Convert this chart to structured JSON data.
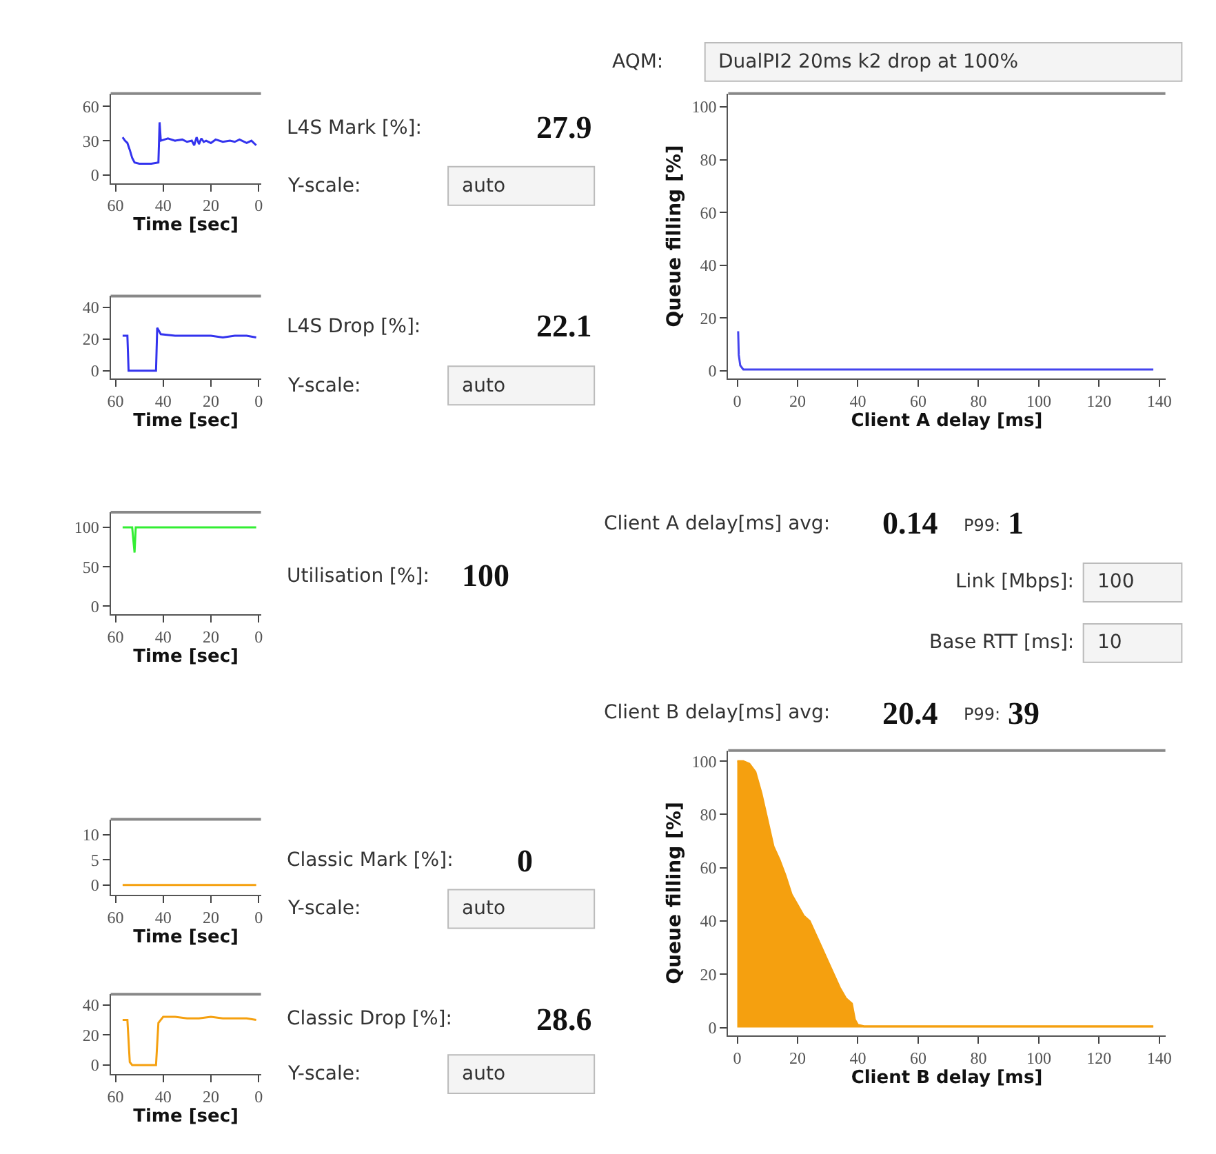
{
  "chart_data": [
    {
      "type": "line",
      "x": [
        57,
        56,
        55,
        54,
        53,
        52,
        50,
        45,
        42,
        41.5,
        41,
        38,
        35,
        32,
        30,
        28,
        27,
        26,
        25,
        24,
        23,
        22,
        20,
        18,
        15,
        12,
        10,
        8,
        5,
        3,
        1
      ],
      "series": [
        {
          "color": "#3333ee",
          "values": [
            33,
            30,
            28,
            22,
            15,
            11,
            10,
            10,
            11,
            46,
            30,
            32,
            30,
            31,
            29,
            30,
            26,
            33,
            27,
            32,
            29,
            30,
            28,
            31,
            29,
            30,
            29,
            31,
            28,
            30,
            26
          ]
        }
      ],
      "xlim": [
        62,
        -1
      ],
      "xticks": [
        60,
        40,
        20,
        0
      ],
      "ylim": [
        -7,
        71
      ],
      "yticks": [
        0,
        30,
        60
      ],
      "xlabel": "Time [sec]",
      "annotations": [
        "L4S Mark [%]:",
        "27.9",
        "Y-scale:",
        "auto"
      ]
    },
    {
      "type": "line",
      "x": [
        57,
        55,
        54.5,
        52,
        45,
        43,
        42.5,
        41,
        35,
        30,
        25,
        20,
        15,
        10,
        5,
        1
      ],
      "series": [
        {
          "color": "#3333ee",
          "values": [
            22,
            22,
            0,
            0,
            0,
            0,
            27,
            23,
            22,
            22,
            22,
            22,
            21,
            22,
            22,
            21
          ]
        }
      ],
      "xlim": [
        62,
        -1
      ],
      "xticks": [
        60,
        40,
        20,
        0
      ],
      "ylim": [
        -5,
        47
      ],
      "yticks": [
        0,
        20,
        40
      ],
      "xlabel": "Time [sec]",
      "annotations": [
        "L4S Drop [%]:",
        "22.1",
        "Y-scale:",
        "auto"
      ]
    },
    {
      "type": "line",
      "x": [
        57,
        53,
        52,
        51.5,
        1
      ],
      "series": [
        {
          "color": "#33ee33",
          "values": [
            100,
            100,
            68,
            100,
            100
          ]
        }
      ],
      "xlim": [
        62,
        -1
      ],
      "xticks": [
        60,
        40,
        20,
        0
      ],
      "ylim": [
        -10,
        119
      ],
      "yticks": [
        0,
        50,
        100
      ],
      "xlabel": "Time [sec]",
      "annotations": [
        "Utilisation [%]:",
        "100"
      ]
    },
    {
      "type": "line",
      "x": [
        57,
        1
      ],
      "series": [
        {
          "color": "#f5a00f",
          "values": [
            0,
            0
          ]
        }
      ],
      "xlim": [
        62,
        -1
      ],
      "xticks": [
        60,
        40,
        20,
        0
      ],
      "ylim": [
        -2,
        13
      ],
      "yticks": [
        0,
        5,
        10
      ],
      "xlabel": "Time [sec]",
      "annotations": [
        "Classic Mark [%]:",
        "0",
        "Y-scale:",
        "auto"
      ]
    },
    {
      "type": "line",
      "x": [
        57,
        55,
        54,
        53,
        45,
        43,
        42,
        40,
        38,
        35,
        30,
        25,
        20,
        15,
        10,
        5,
        1
      ],
      "series": [
        {
          "color": "#f5a00f",
          "values": [
            30,
            30,
            2,
            0,
            0,
            0,
            28,
            32,
            32,
            32,
            31,
            31,
            32,
            31,
            31,
            31,
            30
          ]
        }
      ],
      "xlim": [
        62,
        -1
      ],
      "xticks": [
        60,
        40,
        20,
        0
      ],
      "ylim": [
        -6,
        47
      ],
      "yticks": [
        0,
        20,
        40
      ],
      "xlabel": "Time [sec]",
      "annotations": [
        "Classic Drop [%]:",
        "28.6",
        "Y-scale:",
        "auto"
      ]
    },
    {
      "type": "line",
      "x": [
        0.3,
        0.5,
        1,
        2,
        138
      ],
      "series": [
        {
          "color": "#4444ee",
          "values": [
            15,
            6,
            2,
            0.5,
            0.5
          ]
        }
      ],
      "xlim": [
        -3,
        142
      ],
      "xticks": [
        0,
        20,
        40,
        60,
        80,
        100,
        120,
        140
      ],
      "ylim": [
        -3,
        105
      ],
      "yticks": [
        0,
        20,
        40,
        60,
        80,
        100
      ],
      "xlabel": "Client A delay [ms]",
      "ylabel": "Queue filling [%]",
      "annotations": [
        "Client A delay[ms] avg:",
        "0.14",
        "P99:",
        "1"
      ]
    },
    {
      "type": "area",
      "x": [
        0,
        2,
        4,
        6,
        8,
        10,
        12,
        14,
        16,
        18,
        20,
        22,
        24,
        26,
        28,
        30,
        32,
        34,
        36,
        38,
        39,
        40,
        42,
        138
      ],
      "series": [
        {
          "color": "#f5a00f",
          "values": [
            100,
            100,
            99,
            96,
            88,
            78,
            68,
            63,
            57,
            50,
            46,
            42,
            40,
            35,
            30,
            25,
            20,
            15,
            11,
            9,
            3,
            1,
            0.5,
            0.5
          ]
        }
      ],
      "xlim": [
        -3,
        142
      ],
      "xticks": [
        0,
        20,
        40,
        60,
        80,
        100,
        120,
        140
      ],
      "ylim": [
        -3,
        104
      ],
      "yticks": [
        0,
        20,
        40,
        60,
        80,
        100
      ],
      "xlabel": "Client B delay [ms]",
      "ylabel": "Queue filling [%]",
      "annotations": [
        "Client B delay[ms] avg:",
        "20.4",
        "P99:",
        "39"
      ]
    },
    {
      "type": "other",
      "annotations": [
        "AQM:",
        "DualPI2 20ms k2 drop at 100%",
        "Link [Mbps]:",
        "100",
        "Base RTT [ms]:",
        "10"
      ]
    }
  ]
}
